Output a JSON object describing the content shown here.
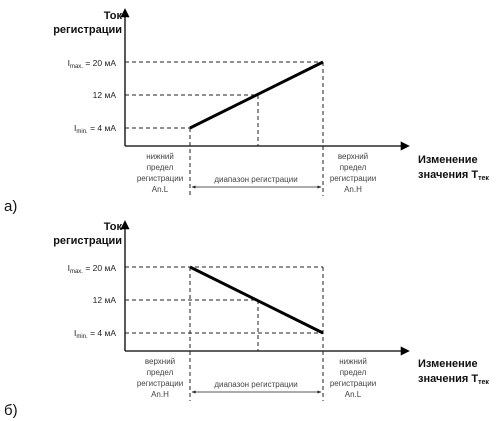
{
  "diagram_a": {
    "letter": "а)",
    "y_title_1": "Ток",
    "y_title_2": "регистрации",
    "imax_label": "I",
    "imax_sub": "max.",
    "imax_value": " = 20 мА",
    "imid_label": "12 мА",
    "imin_label": "I",
    "imin_sub": "min.",
    "imin_value": " = 4 мА",
    "x_title_1": "Изменение",
    "x_title_2": "значения T",
    "x_title_sub": "тек",
    "left_caption": [
      "нижний",
      "предел",
      "регистрации",
      "An.L"
    ],
    "right_caption": [
      "верхний",
      "предел",
      "регистрации",
      "An.H"
    ],
    "range_caption": "диапазон регистрации"
  },
  "diagram_b": {
    "letter": "б)",
    "y_title_1": "Ток",
    "y_title_2": "регистрации",
    "imax_label": "I",
    "imax_sub": "max.",
    "imax_value": " = 20 мА",
    "imid_label": "12 мА",
    "imin_label": "I",
    "imin_sub": "min.",
    "imin_value": " = 4 мА",
    "x_title_1": "Изменение",
    "x_title_2": "значения T",
    "x_title_sub": "тек",
    "left_caption": [
      "верхний",
      "предел",
      "регистрации",
      "An.H"
    ],
    "right_caption": [
      "нижний",
      "предел",
      "регистрации",
      "An.L"
    ],
    "range_caption": "диапазон регистрации"
  }
}
